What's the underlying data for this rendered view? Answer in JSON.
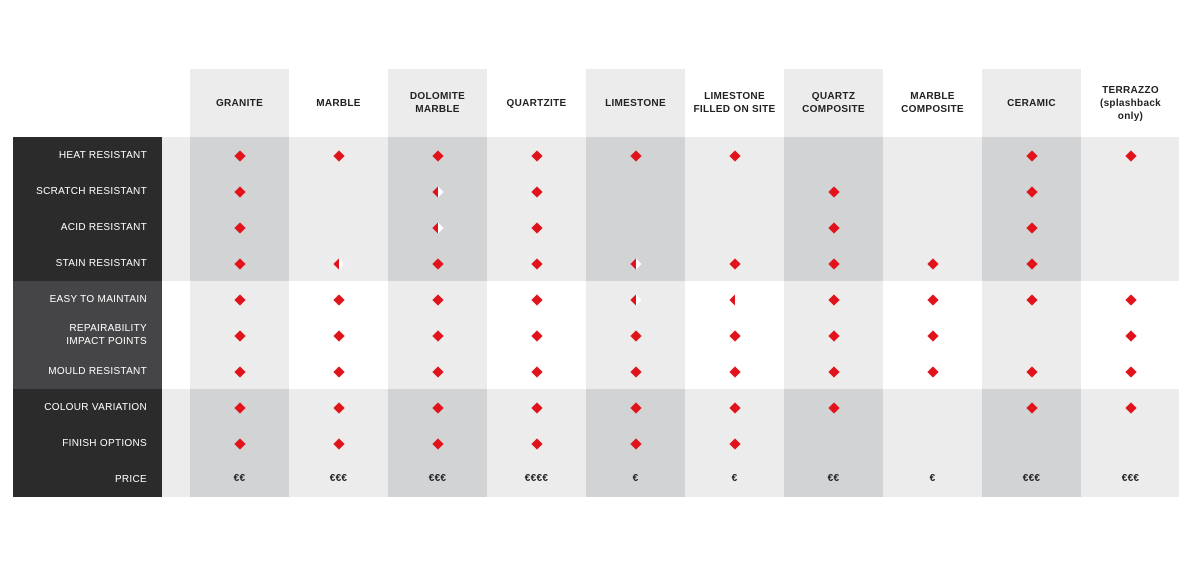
{
  "colors": {
    "accent": "#e0131b",
    "row_labels_dark": "#2b2b2c",
    "row_labels_mid": "#454547"
  },
  "columns": [
    "GRANITE",
    "MARBLE",
    "DOLOMITE\nMARBLE",
    "QUARTZITE",
    "LIMESTONE",
    "LIMESTONE\nFILLED ON SITE",
    "QUARTZ\nCOMPOSITE",
    "MARBLE\nCOMPOSITE",
    "CERAMIC",
    "TERRAZZO\n(splashback\nonly)"
  ],
  "rows": [
    {
      "label": "HEAT RESISTANT",
      "marks": [
        "full",
        "full",
        "full",
        "full",
        "full",
        "full",
        "",
        "",
        "full",
        "full"
      ]
    },
    {
      "label": "SCRATCH RESISTANT",
      "marks": [
        "full",
        "",
        "half",
        "full",
        "",
        "",
        "full",
        "",
        "full",
        ""
      ]
    },
    {
      "label": "ACID RESISTANT",
      "marks": [
        "full",
        "",
        "half",
        "full",
        "",
        "",
        "full",
        "",
        "full",
        ""
      ]
    },
    {
      "label": "STAIN RESISTANT",
      "marks": [
        "full",
        "half",
        "full",
        "full",
        "half",
        "full",
        "full",
        "full",
        "full",
        ""
      ]
    },
    {
      "label": "EASY TO MAINTAIN",
      "marks": [
        "full",
        "full",
        "full",
        "full",
        "half",
        "half",
        "full",
        "full",
        "full",
        "full"
      ]
    },
    {
      "label": "REPAIRABILITY\nIMPACT POINTS",
      "marks": [
        "full",
        "full",
        "full",
        "full",
        "full",
        "full",
        "full",
        "full",
        "",
        "full"
      ]
    },
    {
      "label": "MOULD RESISTANT",
      "marks": [
        "full",
        "full",
        "full",
        "full",
        "full",
        "full",
        "full",
        "full",
        "full",
        "full"
      ]
    },
    {
      "label": "COLOUR VARIATION",
      "marks": [
        "full",
        "full",
        "full",
        "full",
        "full",
        "full",
        "full",
        "",
        "full",
        "full"
      ]
    },
    {
      "label": "FINISH OPTIONS",
      "marks": [
        "full",
        "full",
        "full",
        "full",
        "full",
        "full",
        "",
        "",
        "",
        ""
      ]
    }
  ],
  "price": {
    "label": "PRICE",
    "values": [
      "€€",
      "€€€",
      "€€€",
      "€€€€",
      "€",
      "€",
      "€€",
      "€",
      "€€€",
      "€€€"
    ]
  }
}
